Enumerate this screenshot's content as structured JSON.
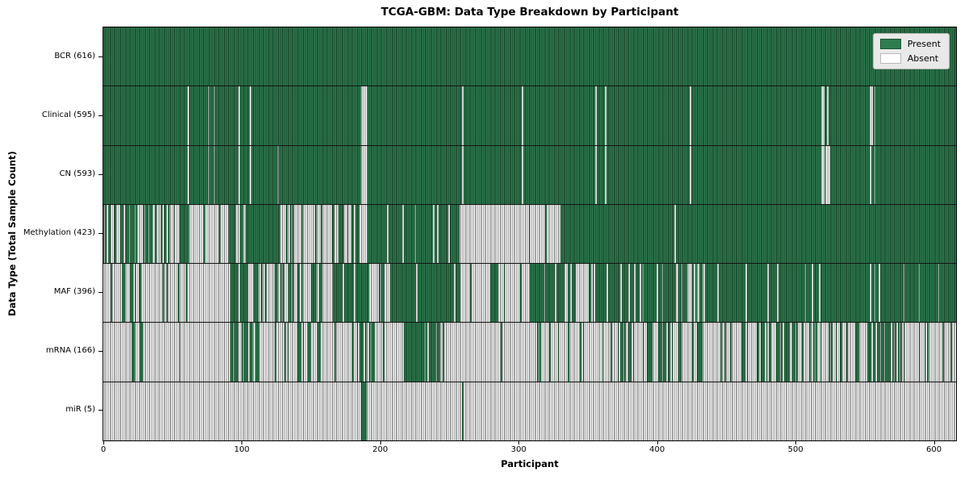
{
  "chart_data": {
    "type": "heatmap",
    "title": "TCGA-GBM: Data Type Breakdown by Participant",
    "xlabel": "Participant",
    "ylabel": "Data Type (Total Sample Count)",
    "legend": {
      "present": "Present",
      "absent": "Absent"
    },
    "legend_position": "upper right",
    "n_participants": 616,
    "x_ticks": [
      0,
      100,
      200,
      300,
      400,
      500,
      600
    ],
    "colors": {
      "present_fill": "#2e7d51",
      "present_edge": "#1e5434",
      "absent_fill": "#fcfcfc",
      "absent_edge": "#a3a3a3"
    },
    "rows": [
      {
        "name": "BCR",
        "label": "BCR (616)",
        "count": 616,
        "segments": [
          [
            0,
            616,
            1
          ]
        ]
      },
      {
        "name": "Clinical",
        "label": "Clinical (595)",
        "count": 595,
        "absent": [
          61,
          76,
          80,
          98,
          106,
          186,
          187,
          188,
          189,
          190,
          259,
          302,
          355,
          362,
          423,
          518,
          519,
          522,
          553,
          554,
          556
        ]
      },
      {
        "name": "CN",
        "label": "CN (593)",
        "count": 593,
        "absent": [
          61,
          76,
          80,
          98,
          106,
          126,
          186,
          187,
          188,
          189,
          190,
          259,
          302,
          355,
          362,
          423,
          518,
          519,
          521,
          522,
          523,
          553,
          556
        ]
      },
      {
        "name": "Methylation",
        "label": "Methylation (423)",
        "count": 423,
        "segments": [
          [
            0,
            55,
            0.5
          ],
          [
            55,
            62,
            1
          ],
          [
            62,
            91,
            0.08
          ],
          [
            91,
            105,
            0.8
          ],
          [
            105,
            122,
            0.9
          ],
          [
            122,
            140,
            0.45
          ],
          [
            140,
            165,
            0.15
          ],
          [
            165,
            186,
            0.5
          ],
          [
            186,
            190,
            0
          ],
          [
            190,
            257,
            0.85
          ],
          [
            257,
            330,
            0.02
          ],
          [
            330,
            412,
            1
          ],
          [
            412,
            413,
            0
          ],
          [
            413,
            616,
            1
          ]
        ]
      },
      {
        "name": "MAF",
        "label": "MAF (396)",
        "count": 396,
        "segments": [
          [
            0,
            19,
            0.08
          ],
          [
            19,
            31,
            0.6
          ],
          [
            31,
            91,
            0.05
          ],
          [
            91,
            105,
            0.8
          ],
          [
            105,
            144,
            0.5
          ],
          [
            144,
            150,
            0.05
          ],
          [
            150,
            158,
            0.85
          ],
          [
            158,
            164,
            0.2
          ],
          [
            164,
            178,
            0.8
          ],
          [
            178,
            186,
            0.5
          ],
          [
            186,
            192,
            0.9
          ],
          [
            192,
            207,
            0.2
          ],
          [
            207,
            257,
            0.9
          ],
          [
            257,
            280,
            0.08
          ],
          [
            280,
            285,
            0.9
          ],
          [
            285,
            308,
            0.08
          ],
          [
            308,
            342,
            0.75
          ],
          [
            342,
            350,
            0.1
          ],
          [
            350,
            421,
            0.85
          ],
          [
            421,
            434,
            0.25
          ],
          [
            434,
            560,
            0.88
          ],
          [
            560,
            616,
            0.95
          ]
        ]
      },
      {
        "name": "mRNA",
        "label": "mRNA (166)",
        "count": 166,
        "segments": [
          [
            0,
            26,
            0.04
          ],
          [
            26,
            31,
            0.5
          ],
          [
            31,
            91,
            0.03
          ],
          [
            91,
            105,
            0.65
          ],
          [
            105,
            138,
            0.35
          ],
          [
            138,
            156,
            0.3
          ],
          [
            156,
            178,
            0.15
          ],
          [
            178,
            197,
            0.55
          ],
          [
            197,
            207,
            0.1
          ],
          [
            207,
            217,
            0.05
          ],
          [
            217,
            243,
            0.7
          ],
          [
            243,
            310,
            0.05
          ],
          [
            310,
            350,
            0.15
          ],
          [
            350,
            420,
            0.35
          ],
          [
            420,
            470,
            0.3
          ],
          [
            470,
            510,
            0.55
          ],
          [
            510,
            555,
            0.35
          ],
          [
            555,
            580,
            0.75
          ],
          [
            580,
            616,
            0.1
          ]
        ]
      },
      {
        "name": "miR",
        "label": "miR (5)",
        "count": 5,
        "present_only": [
          186,
          187,
          188,
          189,
          259
        ]
      }
    ]
  }
}
